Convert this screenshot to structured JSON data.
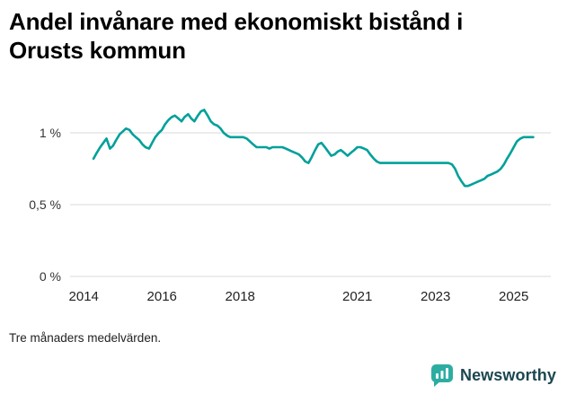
{
  "title": "Andel invånare med ekonomiskt bistånd i Orusts kommun",
  "footnote": "Tre månaders medelvärden.",
  "brand": {
    "name": "Newsworthy",
    "icon": "bar-chart-speech-bubble-icon",
    "logo_color": "#2dada2",
    "text_color": "#1c4650"
  },
  "chart_data": {
    "type": "line",
    "title": "Andel invånare med ekonomiskt bistånd i Orusts kommun",
    "xlabel": "",
    "ylabel": "",
    "legend": "none",
    "grid": true,
    "grid_color": "#d8d8d8",
    "tick_color": "#333333",
    "xlim": [
      2013.65,
      2025.95
    ],
    "ylim": [
      0,
      1.25
    ],
    "x_ticks": [
      {
        "value": 2014,
        "label": "2014"
      },
      {
        "value": 2016,
        "label": "2016"
      },
      {
        "value": 2018,
        "label": "2018"
      },
      {
        "value": 2021,
        "label": "2021"
      },
      {
        "value": 2023,
        "label": "2023"
      },
      {
        "value": 2025,
        "label": "2025"
      }
    ],
    "y_ticks": [
      {
        "value": 1,
        "label": "1 %"
      },
      {
        "value": 0.5,
        "label": "0,5 %"
      },
      {
        "value": 0,
        "label": "0 %"
      }
    ],
    "series": [
      {
        "name": "Andel invånare med ekonomiskt bistånd (%)",
        "color": "#00a09a",
        "points": [
          [
            2014.25,
            0.82
          ],
          [
            2014.33,
            0.86
          ],
          [
            2014.42,
            0.9
          ],
          [
            2014.5,
            0.93
          ],
          [
            2014.58,
            0.96
          ],
          [
            2014.67,
            0.89
          ],
          [
            2014.75,
            0.91
          ],
          [
            2014.83,
            0.95
          ],
          [
            2014.92,
            0.99
          ],
          [
            2015.0,
            1.01
          ],
          [
            2015.08,
            1.03
          ],
          [
            2015.17,
            1.02
          ],
          [
            2015.25,
            0.99
          ],
          [
            2015.33,
            0.97
          ],
          [
            2015.42,
            0.95
          ],
          [
            2015.5,
            0.92
          ],
          [
            2015.58,
            0.9
          ],
          [
            2015.67,
            0.89
          ],
          [
            2015.75,
            0.93
          ],
          [
            2015.83,
            0.97
          ],
          [
            2015.92,
            1.0
          ],
          [
            2016.0,
            1.02
          ],
          [
            2016.08,
            1.06
          ],
          [
            2016.17,
            1.09
          ],
          [
            2016.25,
            1.11
          ],
          [
            2016.33,
            1.12
          ],
          [
            2016.42,
            1.1
          ],
          [
            2016.5,
            1.08
          ],
          [
            2016.58,
            1.11
          ],
          [
            2016.67,
            1.13
          ],
          [
            2016.75,
            1.1
          ],
          [
            2016.83,
            1.08
          ],
          [
            2016.92,
            1.12
          ],
          [
            2017.0,
            1.15
          ],
          [
            2017.08,
            1.16
          ],
          [
            2017.17,
            1.12
          ],
          [
            2017.25,
            1.08
          ],
          [
            2017.33,
            1.06
          ],
          [
            2017.42,
            1.05
          ],
          [
            2017.5,
            1.03
          ],
          [
            2017.58,
            1.0
          ],
          [
            2017.67,
            0.98
          ],
          [
            2017.75,
            0.97
          ],
          [
            2017.83,
            0.97
          ],
          [
            2017.92,
            0.97
          ],
          [
            2018.0,
            0.97
          ],
          [
            2018.08,
            0.97
          ],
          [
            2018.17,
            0.96
          ],
          [
            2018.25,
            0.94
          ],
          [
            2018.33,
            0.92
          ],
          [
            2018.42,
            0.9
          ],
          [
            2018.5,
            0.9
          ],
          [
            2018.58,
            0.9
          ],
          [
            2018.67,
            0.9
          ],
          [
            2018.75,
            0.89
          ],
          [
            2018.83,
            0.9
          ],
          [
            2018.92,
            0.9
          ],
          [
            2019.0,
            0.9
          ],
          [
            2019.08,
            0.9
          ],
          [
            2019.17,
            0.89
          ],
          [
            2019.25,
            0.88
          ],
          [
            2019.33,
            0.87
          ],
          [
            2019.42,
            0.86
          ],
          [
            2019.5,
            0.85
          ],
          [
            2019.58,
            0.83
          ],
          [
            2019.67,
            0.8
          ],
          [
            2019.75,
            0.79
          ],
          [
            2019.83,
            0.83
          ],
          [
            2019.92,
            0.88
          ],
          [
            2020.0,
            0.92
          ],
          [
            2020.08,
            0.93
          ],
          [
            2020.17,
            0.9
          ],
          [
            2020.25,
            0.87
          ],
          [
            2020.33,
            0.84
          ],
          [
            2020.42,
            0.85
          ],
          [
            2020.5,
            0.87
          ],
          [
            2020.58,
            0.88
          ],
          [
            2020.67,
            0.86
          ],
          [
            2020.75,
            0.84
          ],
          [
            2020.83,
            0.86
          ],
          [
            2020.92,
            0.88
          ],
          [
            2021.0,
            0.9
          ],
          [
            2021.08,
            0.9
          ],
          [
            2021.17,
            0.89
          ],
          [
            2021.25,
            0.88
          ],
          [
            2021.33,
            0.85
          ],
          [
            2021.42,
            0.82
          ],
          [
            2021.5,
            0.8
          ],
          [
            2021.58,
            0.79
          ],
          [
            2021.67,
            0.79
          ],
          [
            2021.75,
            0.79
          ],
          [
            2021.83,
            0.79
          ],
          [
            2021.92,
            0.79
          ],
          [
            2022.0,
            0.79
          ],
          [
            2022.25,
            0.79
          ],
          [
            2022.5,
            0.79
          ],
          [
            2022.75,
            0.79
          ],
          [
            2023.0,
            0.79
          ],
          [
            2023.17,
            0.79
          ],
          [
            2023.33,
            0.79
          ],
          [
            2023.42,
            0.78
          ],
          [
            2023.5,
            0.75
          ],
          [
            2023.58,
            0.7
          ],
          [
            2023.67,
            0.66
          ],
          [
            2023.75,
            0.63
          ],
          [
            2023.83,
            0.63
          ],
          [
            2023.92,
            0.64
          ],
          [
            2024.0,
            0.65
          ],
          [
            2024.08,
            0.66
          ],
          [
            2024.17,
            0.67
          ],
          [
            2024.25,
            0.68
          ],
          [
            2024.33,
            0.7
          ],
          [
            2024.42,
            0.71
          ],
          [
            2024.5,
            0.72
          ],
          [
            2024.58,
            0.73
          ],
          [
            2024.67,
            0.75
          ],
          [
            2024.75,
            0.78
          ],
          [
            2024.83,
            0.82
          ],
          [
            2024.92,
            0.86
          ],
          [
            2025.0,
            0.9
          ],
          [
            2025.08,
            0.94
          ],
          [
            2025.17,
            0.96
          ],
          [
            2025.25,
            0.97
          ],
          [
            2025.33,
            0.97
          ],
          [
            2025.42,
            0.97
          ],
          [
            2025.5,
            0.97
          ]
        ]
      }
    ]
  }
}
